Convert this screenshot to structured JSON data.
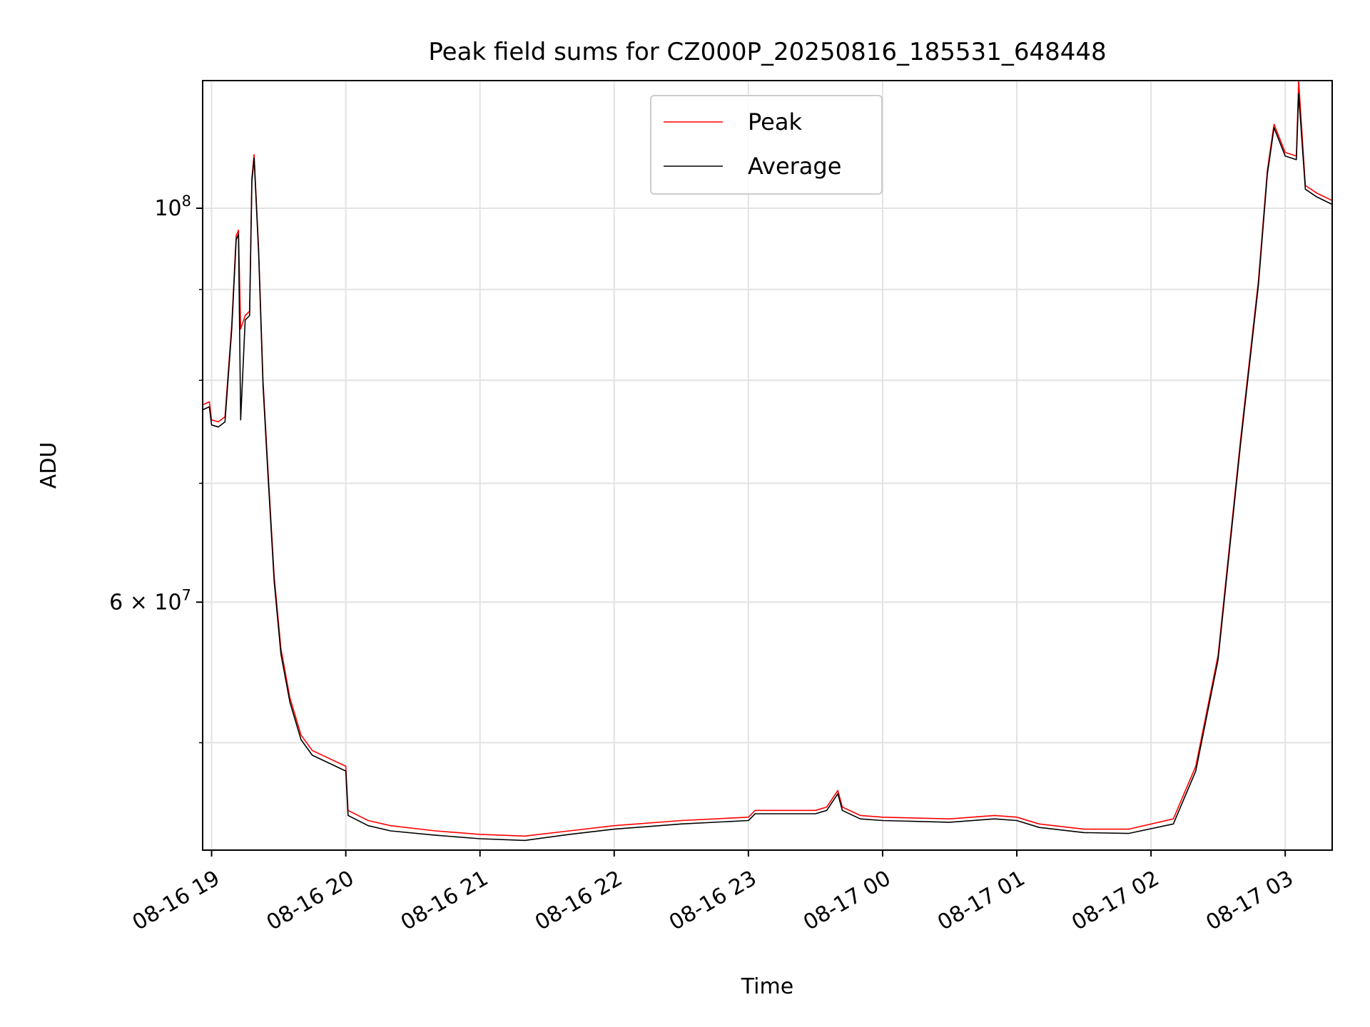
{
  "chart_data": {
    "type": "line",
    "title": "Peak field sums for CZ000P_20250816_185531_648448",
    "xlabel": "Time",
    "ylabel": "ADU",
    "y_scale": "log",
    "x_range": [
      "2025-08-16 18:56",
      "2025-08-17 03:21"
    ],
    "ylim": [
      43500000,
      118000000
    ],
    "grid": true,
    "legend_position": "upper center",
    "x_ticks": [
      {
        "t": "2025-08-16 19:00",
        "label": "08-16 19"
      },
      {
        "t": "2025-08-16 20:00",
        "label": "08-16 20"
      },
      {
        "t": "2025-08-16 21:00",
        "label": "08-16 21"
      },
      {
        "t": "2025-08-16 22:00",
        "label": "08-16 22"
      },
      {
        "t": "2025-08-16 23:00",
        "label": "08-16 23"
      },
      {
        "t": "2025-08-17 00:00",
        "label": "08-17 00"
      },
      {
        "t": "2025-08-17 01:00",
        "label": "08-17 01"
      },
      {
        "t": "2025-08-17 02:00",
        "label": "08-17 02"
      },
      {
        "t": "2025-08-17 03:00",
        "label": "08-17 03"
      }
    ],
    "y_major_ticks": [
      {
        "value": 60000000,
        "base": "6",
        "exp": "7"
      },
      {
        "value": 100000000,
        "base": "10",
        "exp": "8"
      }
    ],
    "y_minor_ticks": [
      50000000,
      70000000,
      80000000,
      90000000
    ],
    "series": [
      {
        "name": "Peak",
        "color": "#ff0000",
        "points": [
          [
            "2025-08-16 18:56",
            77500000
          ],
          [
            "2025-08-16 18:59",
            77800000
          ],
          [
            "2025-08-16 19:00",
            76000000
          ],
          [
            "2025-08-16 19:03",
            75800000
          ],
          [
            "2025-08-16 19:06",
            76300000
          ],
          [
            "2025-08-16 19:09",
            86000000
          ],
          [
            "2025-08-16 19:11",
            96500000
          ],
          [
            "2025-08-16 19:12",
            97200000
          ],
          [
            "2025-08-16 19:13",
            85500000
          ],
          [
            "2025-08-16 19:15",
            87000000
          ],
          [
            "2025-08-16 19:17",
            87500000
          ],
          [
            "2025-08-16 19:18",
            104000000
          ],
          [
            "2025-08-16 19:19",
            107200000
          ],
          [
            "2025-08-16 19:21",
            95000000
          ],
          [
            "2025-08-16 19:23",
            80000000
          ],
          [
            "2025-08-16 19:25",
            72000000
          ],
          [
            "2025-08-16 19:28",
            62000000
          ],
          [
            "2025-08-16 19:31",
            56500000
          ],
          [
            "2025-08-16 19:35",
            53000000
          ],
          [
            "2025-08-16 19:40",
            50500000
          ],
          [
            "2025-08-16 19:45",
            49500000
          ],
          [
            "2025-08-16 20:00",
            48500000
          ],
          [
            "2025-08-16 20:01",
            45800000
          ],
          [
            "2025-08-16 20:10",
            45200000
          ],
          [
            "2025-08-16 20:20",
            44900000
          ],
          [
            "2025-08-16 20:40",
            44600000
          ],
          [
            "2025-08-16 21:00",
            44400000
          ],
          [
            "2025-08-16 21:20",
            44300000
          ],
          [
            "2025-08-16 21:40",
            44600000
          ],
          [
            "2025-08-16 22:00",
            44900000
          ],
          [
            "2025-08-16 22:30",
            45200000
          ],
          [
            "2025-08-16 23:00",
            45400000
          ],
          [
            "2025-08-16 23:03",
            45800000
          ],
          [
            "2025-08-16 23:30",
            45800000
          ],
          [
            "2025-08-16 23:35",
            46000000
          ],
          [
            "2025-08-16 23:40",
            47000000
          ],
          [
            "2025-08-16 23:42",
            46000000
          ],
          [
            "2025-08-16 23:50",
            45500000
          ],
          [
            "2025-08-17 00:00",
            45400000
          ],
          [
            "2025-08-17 00:30",
            45300000
          ],
          [
            "2025-08-17 00:50",
            45500000
          ],
          [
            "2025-08-17 01:00",
            45400000
          ],
          [
            "2025-08-17 01:10",
            45000000
          ],
          [
            "2025-08-17 01:30",
            44700000
          ],
          [
            "2025-08-17 01:50",
            44700000
          ],
          [
            "2025-08-17 02:10",
            45300000
          ],
          [
            "2025-08-17 02:20",
            48500000
          ],
          [
            "2025-08-17 02:30",
            56000000
          ],
          [
            "2025-08-17 02:40",
            74000000
          ],
          [
            "2025-08-17 02:48",
            91000000
          ],
          [
            "2025-08-17 02:52",
            105000000
          ],
          [
            "2025-08-17 02:55",
            111500000
          ],
          [
            "2025-08-17 03:00",
            107500000
          ],
          [
            "2025-08-17 03:05",
            107000000
          ],
          [
            "2025-08-17 03:06",
            118000000
          ],
          [
            "2025-08-17 03:09",
            103000000
          ],
          [
            "2025-08-17 03:14",
            102000000
          ],
          [
            "2025-08-17 03:21",
            101000000
          ]
        ]
      },
      {
        "name": "Average",
        "color": "#000000",
        "points": [
          [
            "2025-08-16 18:56",
            77000000
          ],
          [
            "2025-08-16 18:59",
            77300000
          ],
          [
            "2025-08-16 19:00",
            75500000
          ],
          [
            "2025-08-16 19:03",
            75300000
          ],
          [
            "2025-08-16 19:06",
            75800000
          ],
          [
            "2025-08-16 19:09",
            85500000
          ],
          [
            "2025-08-16 19:11",
            96000000
          ],
          [
            "2025-08-16 19:12",
            96700000
          ],
          [
            "2025-08-16 19:13",
            76000000
          ],
          [
            "2025-08-16 19:15",
            86500000
          ],
          [
            "2025-08-16 19:17",
            87000000
          ],
          [
            "2025-08-16 19:18",
            103500000
          ],
          [
            "2025-08-16 19:19",
            106700000
          ],
          [
            "2025-08-16 19:21",
            94500000
          ],
          [
            "2025-08-16 19:23",
            79500000
          ],
          [
            "2025-08-16 19:25",
            71500000
          ],
          [
            "2025-08-16 19:28",
            61600000
          ],
          [
            "2025-08-16 19:31",
            56100000
          ],
          [
            "2025-08-16 19:35",
            52700000
          ],
          [
            "2025-08-16 19:40",
            50200000
          ],
          [
            "2025-08-16 19:45",
            49200000
          ],
          [
            "2025-08-16 20:00",
            48200000
          ],
          [
            "2025-08-16 20:01",
            45500000
          ],
          [
            "2025-08-16 20:10",
            44900000
          ],
          [
            "2025-08-16 20:20",
            44600000
          ],
          [
            "2025-08-16 20:40",
            44350000
          ],
          [
            "2025-08-16 21:00",
            44150000
          ],
          [
            "2025-08-16 21:20",
            44050000
          ],
          [
            "2025-08-16 21:40",
            44400000
          ],
          [
            "2025-08-16 22:00",
            44700000
          ],
          [
            "2025-08-16 22:30",
            45000000
          ],
          [
            "2025-08-16 23:00",
            45200000
          ],
          [
            "2025-08-16 23:03",
            45600000
          ],
          [
            "2025-08-16 23:30",
            45600000
          ],
          [
            "2025-08-16 23:35",
            45800000
          ],
          [
            "2025-08-16 23:40",
            46800000
          ],
          [
            "2025-08-16 23:42",
            45800000
          ],
          [
            "2025-08-16 23:50",
            45300000
          ],
          [
            "2025-08-17 00:00",
            45200000
          ],
          [
            "2025-08-17 00:30",
            45100000
          ],
          [
            "2025-08-17 00:50",
            45300000
          ],
          [
            "2025-08-17 01:00",
            45200000
          ],
          [
            "2025-08-17 01:10",
            44800000
          ],
          [
            "2025-08-17 01:30",
            44500000
          ],
          [
            "2025-08-17 01:50",
            44450000
          ],
          [
            "2025-08-17 02:10",
            45000000
          ],
          [
            "2025-08-17 02:20",
            48200000
          ],
          [
            "2025-08-17 02:30",
            55700000
          ],
          [
            "2025-08-17 02:40",
            73600000
          ],
          [
            "2025-08-17 02:48",
            90500000
          ],
          [
            "2025-08-17 02:52",
            104500000
          ],
          [
            "2025-08-17 02:55",
            111000000
          ],
          [
            "2025-08-17 03:00",
            107000000
          ],
          [
            "2025-08-17 03:05",
            106500000
          ],
          [
            "2025-08-17 03:06",
            116000000
          ],
          [
            "2025-08-17 03:09",
            102500000
          ],
          [
            "2025-08-17 03:14",
            101500000
          ],
          [
            "2025-08-17 03:21",
            100500000
          ]
        ]
      }
    ]
  }
}
